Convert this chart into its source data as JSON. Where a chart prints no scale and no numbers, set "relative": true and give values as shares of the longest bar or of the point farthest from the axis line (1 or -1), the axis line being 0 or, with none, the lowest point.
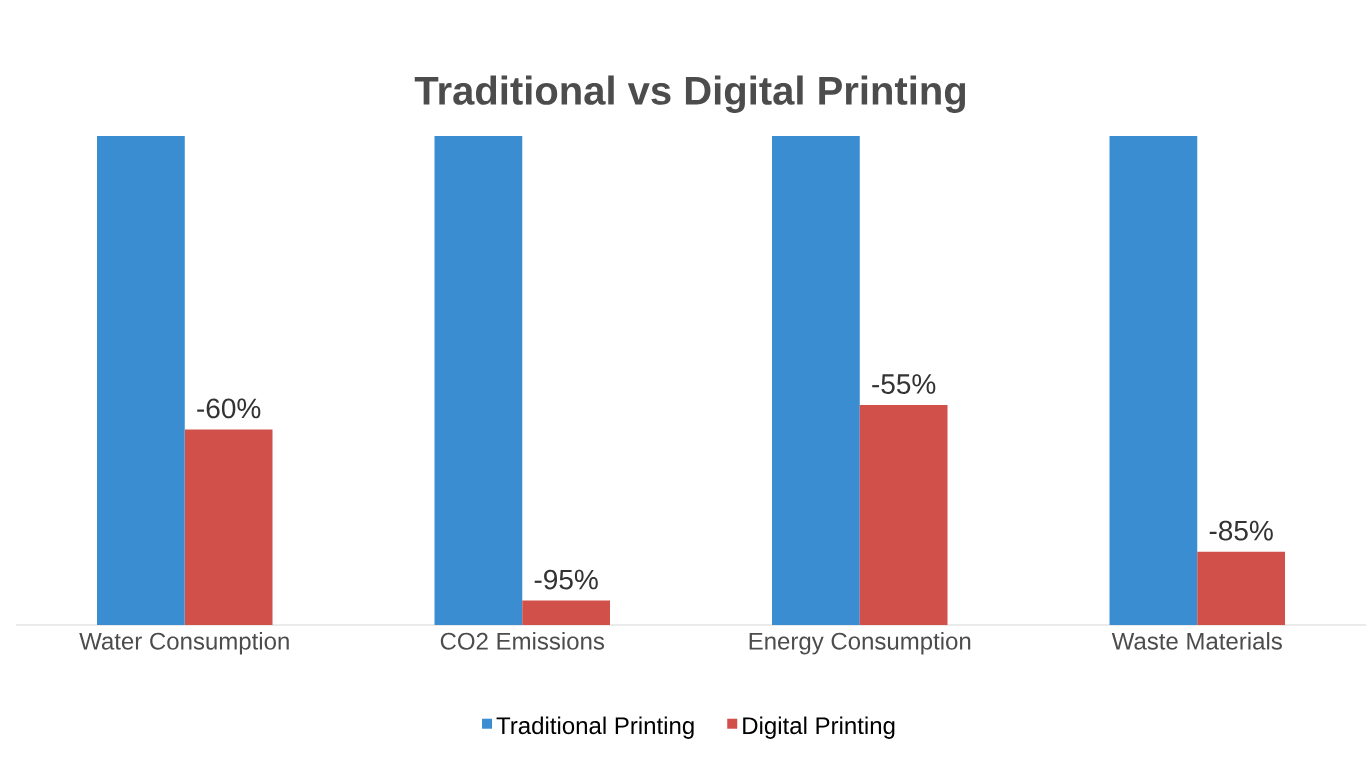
{
  "chart_data": {
    "type": "bar",
    "title": "Traditional vs Digital Printing",
    "relative": true,
    "categories": [
      "Water Consumption",
      "CO2 Emissions",
      "Energy Consumption",
      "Waste Materials"
    ],
    "series": [
      {
        "name": "Traditional Printing",
        "color": "#3a8dd0",
        "values": [
          1,
          1,
          1,
          1
        ]
      },
      {
        "name": "Digital Printing",
        "color": "#d2504a",
        "values": [
          0.4,
          0.05,
          0.45,
          0.15
        ]
      }
    ],
    "annotations": [
      {
        "text": "-60%",
        "x": "Water Consumption",
        "y": 0.4
      },
      {
        "text": "-95%",
        "x": "CO2 Emissions",
        "y": 0.05
      },
      {
        "text": "-55%",
        "x": "Energy Consumption",
        "y": 0.45
      },
      {
        "text": "-85%",
        "x": "Waste Materials",
        "y": 0.15
      }
    ],
    "legend": "bottom"
  }
}
